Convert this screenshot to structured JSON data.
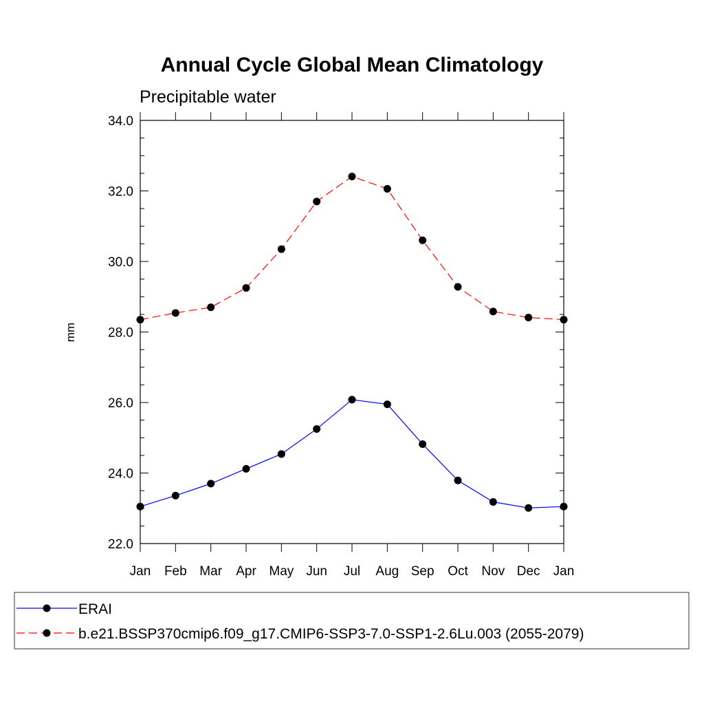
{
  "chart_data": {
    "type": "line",
    "title": "Annual Cycle Global Mean Climatology",
    "subtitle": "Precipitable water",
    "xlabel": "",
    "ylabel": "mm",
    "categories": [
      "Jan",
      "Feb",
      "Mar",
      "Apr",
      "May",
      "Jun",
      "Jul",
      "Aug",
      "Sep",
      "Oct",
      "Nov",
      "Dec",
      "Jan"
    ],
    "ylim": [
      22.0,
      34.0
    ],
    "yticks": [
      "22.0",
      "24.0",
      "26.0",
      "28.0",
      "30.0",
      "32.0",
      "34.0"
    ],
    "grid": false,
    "legend_position": "bottom",
    "series": [
      {
        "name": "ERAI",
        "color": "#0000ff",
        "line_style": "solid",
        "marker": "filled-circle",
        "values": [
          23.05,
          23.36,
          23.7,
          24.12,
          24.54,
          25.25,
          26.08,
          25.95,
          24.82,
          23.79,
          23.18,
          23.01,
          23.05
        ]
      },
      {
        "name": "b.e21.BSSP370cmip6.f09_g17.CMIP6-SSP3-7.0-SSP1-2.6Lu.003 (2055-2079)",
        "color": "#ff0000",
        "line_style": "dashed",
        "marker": "filled-circle",
        "values": [
          28.35,
          28.54,
          28.7,
          29.25,
          30.35,
          31.7,
          32.41,
          32.06,
          30.6,
          29.28,
          28.58,
          28.41,
          28.35
        ]
      }
    ]
  }
}
